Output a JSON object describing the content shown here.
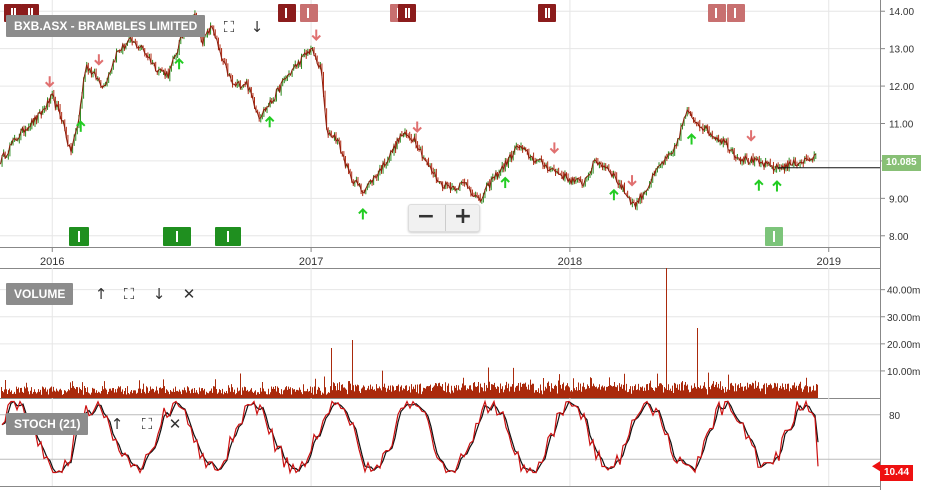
{
  "chart_data": [
    {
      "type": "line",
      "panel": "price",
      "title": "BXB.ASX - BRAMBLES LIMITED",
      "ylim": [
        7.7,
        14.3
      ],
      "yticks": [
        "8.00",
        "9.00",
        "10.00",
        "11.00",
        "12.00",
        "13.00",
        "14.00"
      ],
      "xticks": [
        "2016",
        "2017",
        "2018",
        "2019"
      ],
      "x_range": [
        2015.8,
        2019.2
      ],
      "series": [
        {
          "x": [
            2015.8,
            2015.85,
            2015.9,
            2015.95,
            2016.0,
            2016.04,
            2016.07,
            2016.1,
            2016.13,
            2016.16,
            2016.2,
            2016.25,
            2016.3,
            2016.35,
            2016.4,
            2016.45,
            2016.5,
            2016.55,
            2016.58,
            2016.62,
            2016.65,
            2016.7,
            2016.75,
            2016.8,
            2016.85,
            2016.9,
            2016.95,
            2017.0,
            2017.04,
            2017.06,
            2017.1,
            2017.15,
            2017.2,
            2017.25,
            2017.3,
            2017.35,
            2017.4,
            2017.45,
            2017.5,
            2017.55,
            2017.6,
            2017.65,
            2017.7,
            2017.75,
            2017.8,
            2017.85,
            2017.9,
            2017.95,
            2018.0,
            2018.05,
            2018.1,
            2018.15,
            2018.2,
            2018.25,
            2018.3,
            2018.35,
            2018.4,
            2018.45,
            2018.5,
            2018.55,
            2018.6,
            2018.65,
            2018.7,
            2018.75,
            2018.8,
            2018.85,
            2018.9,
            2018.95
          ],
          "values": [
            10.0,
            10.5,
            10.9,
            11.2,
            11.7,
            11.1,
            10.2,
            11.0,
            12.6,
            12.3,
            12.0,
            12.9,
            13.2,
            13.0,
            12.5,
            12.3,
            13.3,
            13.9,
            13.2,
            13.6,
            12.8,
            12.0,
            12.1,
            11.2,
            11.6,
            12.2,
            12.6,
            13.0,
            12.4,
            10.8,
            10.6,
            9.6,
            9.2,
            9.6,
            10.1,
            10.7,
            10.6,
            9.9,
            9.4,
            9.3,
            9.4,
            8.9,
            9.5,
            9.9,
            10.4,
            10.1,
            9.9,
            9.7,
            9.5,
            9.4,
            10.0,
            9.8,
            9.3,
            8.8,
            9.3,
            9.9,
            10.2,
            11.3,
            11.0,
            10.7,
            10.5,
            10.1,
            10.0,
            9.9,
            9.8,
            9.9,
            10.0,
            10.085
          ]
        }
      ],
      "last_price": "10.085",
      "markers": {
        "down_arrows_x": [
          2015.99,
          2016.18,
          2017.02,
          2017.41,
          2017.94,
          2018.24,
          2018.7
        ],
        "up_arrows_x": [
          2016.11,
          2016.49,
          2016.84,
          2017.2,
          2017.75,
          2018.17,
          2018.47,
          2018.73,
          2018.8
        ]
      }
    },
    {
      "type": "bar",
      "panel": "volume",
      "title": "VOLUME",
      "ylim": [
        0,
        48
      ],
      "yticks": [
        "10.00m",
        "20.00m",
        "30.00m",
        "40.00m"
      ]
    },
    {
      "type": "line",
      "panel": "stochastic",
      "title": "STOCH (21)",
      "ylim": [
        0,
        100
      ],
      "yticks": [
        "80"
      ],
      "last_value": "10.44"
    }
  ],
  "colors": {
    "price_line": "#8b1c0c",
    "candle_up": "#2a8a1e",
    "candle_down": "#b02a12",
    "volume": "#aa2a0c",
    "stoch_main": "#cc1010",
    "stoch_signal": "#111111",
    "arrow_down": "#e07070",
    "arrow_up": "#22cc22",
    "last_price_tag": "#88c076",
    "stoch_tag": "#ee1111",
    "grid": "#e6e6e6"
  },
  "controls": {
    "zoom_out": "−",
    "zoom_in": "+",
    "expand_icon": "⛶",
    "move_up_icon": "↑",
    "move_down_icon": "↓",
    "close_icon": "✕"
  },
  "icons": [
    "expand-icon",
    "arrow-down-icon",
    "arrow-up-icon",
    "close-icon"
  ]
}
